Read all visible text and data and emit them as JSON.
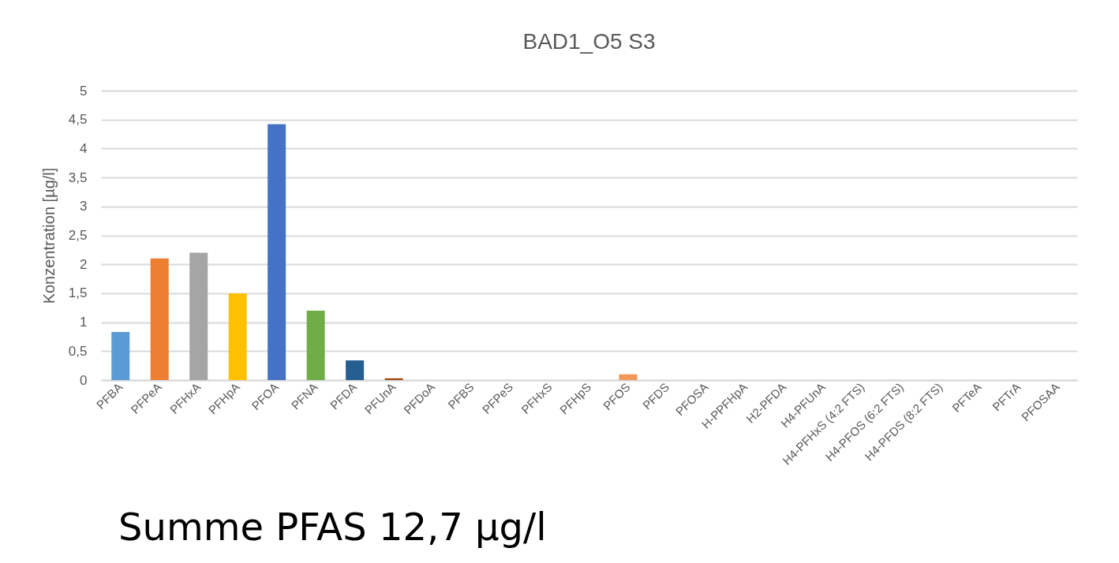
{
  "chart_data": {
    "type": "bar",
    "title": "BAD1_O5 S3",
    "ylabel": "Konzentration [µg/l]",
    "categories": [
      "PFBA",
      "PFPeA",
      "PFHxA",
      "PFHpA",
      "PFOA",
      "PFNA",
      "PFDA",
      "PFUnA",
      "PFDoA",
      "PFBS",
      "PFPeS",
      "PFHxS",
      "PFHpS",
      "PFOS",
      "PFDS",
      "PFOSA",
      "H-PPFHpA",
      "H2-PFDA",
      "H4-PFUnA",
      "H4-PFHxS (4:2 FTS)",
      "H4-PFOS (6:2 FTS)",
      "H4-PFDS (8:2 FTS)",
      "PFTeA",
      "PFTrA",
      "PFOSAA"
    ],
    "values": [
      0.83,
      2.1,
      2.2,
      1.5,
      4.42,
      1.2,
      0.34,
      0.03,
      0,
      0,
      0,
      0,
      0,
      0.1,
      0,
      0,
      0,
      0,
      0,
      0,
      0,
      0,
      0,
      0,
      0
    ],
    "colors": [
      "#5b9bd5",
      "#ed7d31",
      "#a5a5a5",
      "#ffc000",
      "#4472c4",
      "#70ad47",
      "#255e91",
      "#9e480e",
      "#636363",
      "#997300",
      "#264478",
      "#43682b",
      "#7cafdd",
      "#f1975a",
      "#b7b7b7",
      "#ffcd33",
      "#698ed0",
      "#8cc168",
      "#327dc2",
      "#d26012",
      "#848484",
      "#cc9a00",
      "#3a5e9c",
      "#5a8a39",
      "#9dc3e6"
    ],
    "ylim": [
      0,
      5
    ],
    "yticks": [
      {
        "value": 0,
        "label": "0"
      },
      {
        "value": 0.5,
        "label": "0,5"
      },
      {
        "value": 1,
        "label": "1"
      },
      {
        "value": 1.5,
        "label": "1,5"
      },
      {
        "value": 2,
        "label": "2"
      },
      {
        "value": 2.5,
        "label": "2,5"
      },
      {
        "value": 3,
        "label": "3"
      },
      {
        "value": 3.5,
        "label": "3,5"
      },
      {
        "value": 4,
        "label": "4"
      },
      {
        "value": 4.5,
        "label": "4,5"
      },
      {
        "value": 5,
        "label": "5"
      }
    ],
    "grid": "y",
    "annotations": [
      "Summe PFAS 12,7 µg/l"
    ]
  }
}
